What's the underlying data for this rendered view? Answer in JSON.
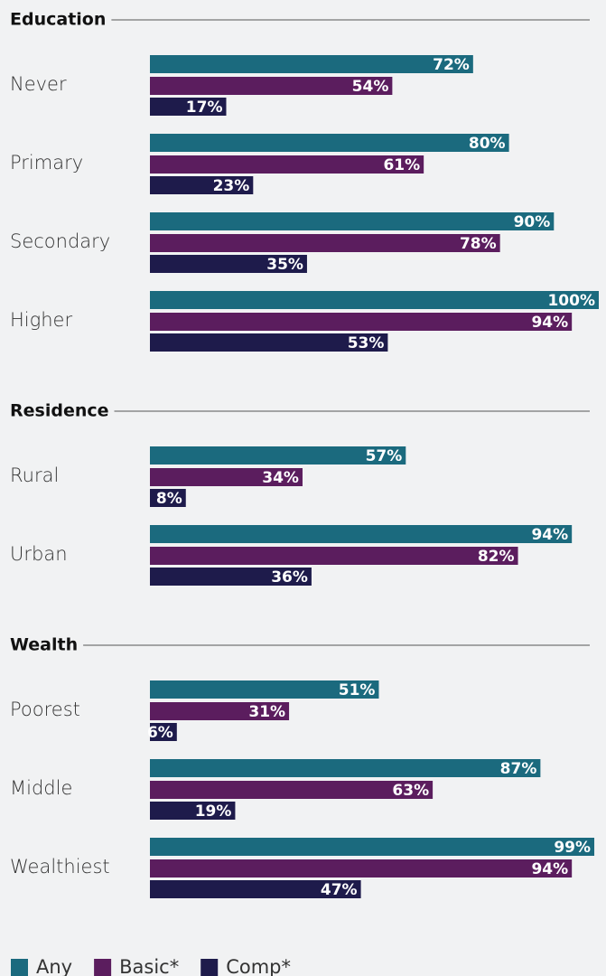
{
  "chart_data": {
    "type": "grouped-hbar",
    "series": [
      {
        "name": "Any",
        "color": "#1b6a7e"
      },
      {
        "name": "Basic*",
        "color": "#5b1d5e"
      },
      {
        "name": "Comp*",
        "color": "#1e1b4b"
      }
    ],
    "panels": [
      {
        "title": "Education",
        "categories": [
          "Never",
          "Primary",
          "Secondary",
          "Higher"
        ],
        "values": [
          [
            72,
            80,
            90,
            100
          ],
          [
            54,
            61,
            78,
            94
          ],
          [
            17,
            23,
            35,
            53
          ]
        ],
        "value_labels": [
          [
            "72%",
            "80%",
            "90%",
            "100%"
          ],
          [
            "54%",
            "61%",
            "78%",
            "94%"
          ],
          [
            "17%",
            "23%",
            "35%",
            "53%"
          ]
        ]
      },
      {
        "title": "Residence",
        "categories": [
          "Rural",
          "Urban"
        ],
        "values": [
          [
            57,
            94
          ],
          [
            34,
            82
          ],
          [
            8,
            36
          ]
        ],
        "value_labels": [
          [
            "57%",
            "94%"
          ],
          [
            "34%",
            "82%"
          ],
          [
            "8%",
            "36%"
          ]
        ]
      },
      {
        "title": "Wealth",
        "categories": [
          "Poorest",
          "Middle",
          "Wealthiest"
        ],
        "values": [
          [
            51,
            87,
            99
          ],
          [
            31,
            63,
            94
          ],
          [
            6,
            19,
            47
          ]
        ],
        "value_labels": [
          [
            "51%",
            "87%",
            "99%"
          ],
          [
            "31%",
            "63%",
            "94%"
          ],
          [
            "6%",
            "19%",
            "47%"
          ]
        ]
      }
    ]
  }
}
